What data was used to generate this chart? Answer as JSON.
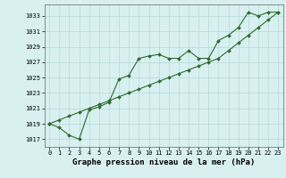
{
  "line1_x": [
    0,
    1,
    2,
    3,
    4,
    5,
    6,
    7,
    8,
    9,
    10,
    11,
    12,
    13,
    14,
    15,
    16,
    17,
    18,
    19,
    20,
    21,
    22,
    23
  ],
  "line1_y": [
    1019.0,
    1018.5,
    1017.5,
    1017.0,
    1020.8,
    1021.2,
    1021.8,
    1024.8,
    1025.3,
    1027.5,
    1027.8,
    1028.0,
    1027.5,
    1027.5,
    1028.5,
    1027.5,
    1027.5,
    1029.8,
    1030.5,
    1031.5,
    1033.5,
    1033.0,
    1033.5,
    1033.5
  ],
  "line2_x": [
    0,
    1,
    2,
    3,
    4,
    5,
    6,
    7,
    8,
    9,
    10,
    11,
    12,
    13,
    14,
    15,
    16,
    17,
    18,
    19,
    20,
    21,
    22,
    23
  ],
  "line2_y": [
    1019.0,
    1019.5,
    1020.0,
    1020.5,
    1021.0,
    1021.5,
    1022.0,
    1022.5,
    1023.0,
    1023.5,
    1024.0,
    1024.5,
    1025.0,
    1025.5,
    1026.0,
    1026.5,
    1027.0,
    1027.5,
    1028.5,
    1029.5,
    1030.5,
    1031.5,
    1032.5,
    1033.5
  ],
  "line_color": "#2d6a2d",
  "bg_color": "#d8f0f0",
  "grid_color": "#b8d8d8",
  "xlabel": "Graphe pression niveau de la mer (hPa)",
  "ylim": [
    1016.0,
    1034.5
  ],
  "yticks": [
    1017,
    1019,
    1021,
    1023,
    1025,
    1027,
    1029,
    1031,
    1033
  ],
  "xticks": [
    0,
    1,
    2,
    3,
    4,
    5,
    6,
    7,
    8,
    9,
    10,
    11,
    12,
    13,
    14,
    15,
    16,
    17,
    18,
    19,
    20,
    21,
    22,
    23
  ],
  "marker": "D",
  "markersize": 2.0,
  "linewidth": 0.8,
  "xlabel_fontsize": 6.5,
  "tick_fontsize": 5.0
}
